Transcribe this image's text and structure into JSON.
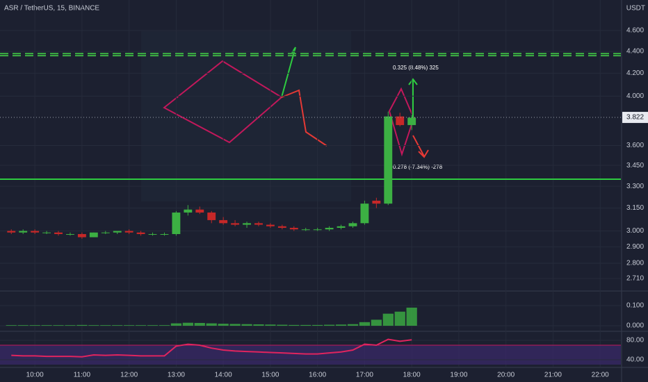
{
  "chart_data": [
    {
      "type": "candlestick",
      "title": "ASR / TetherUS, 15, BINANCE",
      "y_label": "USDT",
      "log_scale": true,
      "grid": true,
      "up_color": "#3cb043",
      "down_color": "#c62828",
      "x": [
        9.5,
        9.75,
        10,
        10.25,
        10.5,
        10.75,
        11,
        11.25,
        11.5,
        11.75,
        12,
        12.25,
        12.5,
        12.75,
        13,
        13.25,
        13.5,
        13.75,
        14,
        14.25,
        14.5,
        14.75,
        15,
        15.25,
        15.5,
        15.75,
        16,
        16.25,
        16.5,
        16.75,
        17,
        17.25,
        17.5,
        17.75,
        18
      ],
      "open": [
        3.0,
        2.99,
        3.0,
        2.99,
        2.99,
        2.98,
        2.98,
        2.96,
        2.99,
        2.99,
        3.0,
        2.99,
        2.98,
        2.98,
        2.98,
        3.12,
        3.14,
        3.12,
        3.07,
        3.05,
        3.04,
        3.05,
        3.04,
        3.03,
        3.02,
        3.01,
        3.01,
        3.01,
        3.02,
        3.03,
        3.05,
        3.2,
        3.18,
        3.83,
        3.76
      ],
      "high": [
        3.01,
        3.01,
        3.01,
        3.0,
        3.0,
        2.99,
        2.99,
        2.99,
        3.0,
        3.0,
        3.01,
        3.0,
        2.99,
        2.99,
        3.13,
        3.17,
        3.16,
        3.13,
        3.09,
        3.07,
        3.06,
        3.06,
        3.05,
        3.04,
        3.03,
        3.02,
        3.02,
        3.03,
        3.04,
        3.06,
        3.2,
        3.22,
        3.87,
        3.86,
        3.84
      ],
      "low": [
        2.98,
        2.98,
        2.98,
        2.98,
        2.97,
        2.97,
        2.95,
        2.96,
        2.98,
        2.98,
        2.98,
        2.97,
        2.97,
        2.97,
        2.97,
        3.1,
        3.11,
        3.05,
        3.04,
        3.03,
        3.02,
        3.03,
        3.02,
        3.01,
        3.0,
        3.0,
        3.0,
        3.0,
        3.01,
        3.02,
        3.04,
        3.15,
        3.17,
        3.75,
        3.72
      ],
      "close": [
        2.99,
        3.0,
        2.99,
        2.99,
        2.98,
        2.98,
        2.96,
        2.99,
        2.99,
        3.0,
        2.99,
        2.98,
        2.98,
        2.98,
        3.12,
        3.14,
        3.12,
        3.07,
        3.05,
        3.04,
        3.05,
        3.04,
        3.03,
        3.02,
        3.01,
        3.01,
        3.01,
        3.02,
        3.03,
        3.05,
        3.18,
        3.18,
        3.83,
        3.76,
        3.82
      ],
      "xlim": [
        9.26,
        22.44
      ],
      "ylim": [
        2.643,
        4.91
      ],
      "xticks": [
        {
          "value": 10,
          "label": "10:00"
        },
        {
          "value": 11,
          "label": "11:00"
        },
        {
          "value": 12,
          "label": "12:00"
        },
        {
          "value": 13,
          "label": "13:00"
        },
        {
          "value": 14,
          "label": "14:00"
        },
        {
          "value": 15,
          "label": "15:00"
        },
        {
          "value": 16,
          "label": "16:00"
        },
        {
          "value": 17,
          "label": "17:00"
        },
        {
          "value": 18,
          "label": "18:00"
        },
        {
          "value": 19,
          "label": "19:00"
        },
        {
          "value": 20,
          "label": "20:00"
        },
        {
          "value": 21,
          "label": "21:00"
        },
        {
          "value": 22,
          "label": "22:00"
        }
      ],
      "yticks": [
        {
          "value": 4.6,
          "label": "4.600"
        },
        {
          "value": 4.4,
          "label": "4.400"
        },
        {
          "value": 4.2,
          "label": "4.200"
        },
        {
          "value": 4.0,
          "label": "4.000"
        },
        {
          "value": 3.6,
          "label": "3.600"
        },
        {
          "value": 3.45,
          "label": "3.450"
        },
        {
          "value": 3.3,
          "label": "3.300"
        },
        {
          "value": 3.15,
          "label": "3.150"
        },
        {
          "value": 3.0,
          "label": "3.000"
        },
        {
          "value": 2.9,
          "label": "2.900"
        },
        {
          "value": 2.8,
          "label": "2.800"
        },
        {
          "value": 2.71,
          "label": "2.710"
        }
      ],
      "last_price": {
        "value": 3.822,
        "label": "3.822"
      },
      "levels": [
        {
          "value": 3.35,
          "color": "#2ecc40",
          "dashed": false
        },
        {
          "value": 4.38,
          "color": "#3cb043",
          "dashed": true
        },
        {
          "value": 4.36,
          "color": "#3cb043",
          "dashed": true
        }
      ],
      "annotations": [
        "0.325 (8.48%) 325",
        "0.278 (-7.34%) -278"
      ]
    },
    {
      "type": "histogram",
      "color": "#3cb043",
      "values": [
        0.003,
        0.003,
        0.003,
        0.003,
        0.003,
        0.003,
        0.004,
        0.003,
        0.003,
        0.003,
        0.003,
        0.003,
        0.003,
        0.003,
        0.012,
        0.015,
        0.014,
        0.012,
        0.01,
        0.009,
        0.008,
        0.007,
        0.006,
        0.005,
        0.004,
        0.004,
        0.004,
        0.005,
        0.006,
        0.008,
        0.018,
        0.03,
        0.06,
        0.07,
        0.09
      ],
      "ylim": [
        -0.024,
        0.169
      ],
      "yticks": [
        {
          "value": 0.1,
          "label": "0.100"
        },
        {
          "value": 0,
          "label": "0.000"
        }
      ]
    },
    {
      "type": "line",
      "color": "#e0245e",
      "band": [
        30,
        70
      ],
      "band_color": "#3b2a6b",
      "values": [
        49,
        48,
        48,
        47,
        47,
        47,
        46,
        50,
        49,
        50,
        49,
        48,
        48,
        48,
        68,
        72,
        70,
        64,
        60,
        58,
        57,
        56,
        55,
        54,
        53,
        52,
        52,
        54,
        56,
        60,
        72,
        70,
        82,
        78,
        81
      ],
      "ylim": [
        25.7,
        97.1
      ],
      "yticks": [
        {
          "value": 80,
          "label": "80.00"
        },
        {
          "value": 40,
          "label": "40.00"
        }
      ]
    }
  ]
}
